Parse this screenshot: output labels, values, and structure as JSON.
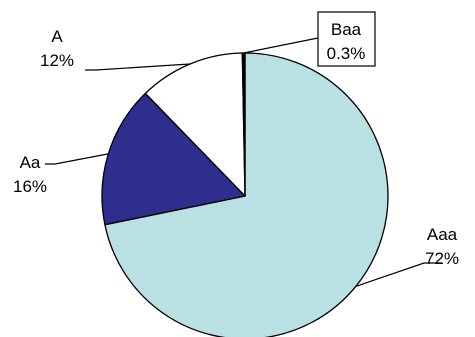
{
  "chart_data": {
    "type": "pie",
    "title": "",
    "slices": [
      {
        "label": "Aaa",
        "value": 72,
        "percent_text": "72%",
        "color": "#b9e1e3"
      },
      {
        "label": "Aa",
        "value": 16,
        "percent_text": "16%",
        "color": "#2e2e8e"
      },
      {
        "label": "A",
        "value": 12,
        "percent_text": "12%",
        "color": "#ffffff"
      },
      {
        "label": "Baa",
        "value": 0.3,
        "percent_text": "0.3%",
        "color": "#000000"
      }
    ],
    "start_angle_deg": 0,
    "direction": "clockwise",
    "legend": "none",
    "outline_color": "#000000"
  }
}
